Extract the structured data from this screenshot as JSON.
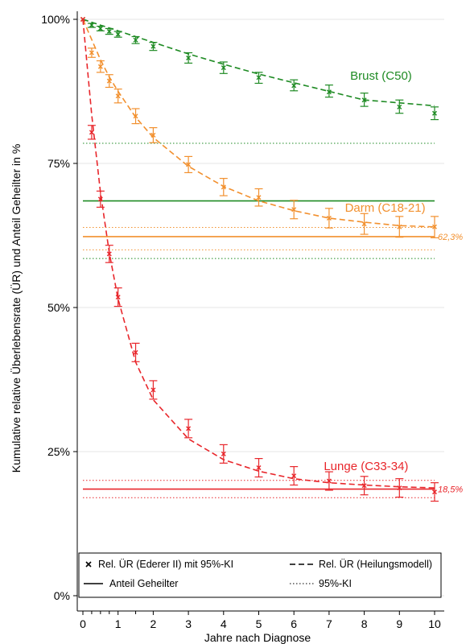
{
  "chart_data": {
    "type": "line",
    "xlabel": "Jahre nach Diagnose",
    "ylabel": "Kumulative relative Überlebensrate (ÜR) und Anteil Geheilter in %",
    "xlim": [
      0,
      10
    ],
    "ylim": [
      0,
      100
    ],
    "x_ticks": [
      "0",
      "1",
      "2",
      "3",
      "4",
      "5",
      "6",
      "7",
      "8",
      "9",
      "10"
    ],
    "y_ticks": [
      "0%",
      "25%",
      "50%",
      "75%",
      "100%"
    ],
    "grid": true,
    "colors": {
      "brust": "#1f8b24",
      "darm": "#f2902e",
      "lunge": "#e8262b"
    },
    "series": [
      {
        "name": "Brust (C50)",
        "color_key": "brust",
        "x": [
          0,
          0.25,
          0.5,
          0.75,
          1,
          1.5,
          2,
          3,
          4,
          5,
          6,
          7,
          8,
          9,
          10
        ],
        "observed": [
          100,
          99.0,
          98.4,
          97.9,
          97.4,
          96.4,
          95.3,
          93.3,
          91.6,
          89.9,
          88.5,
          87.4,
          86.0,
          84.8,
          83.7
        ],
        "ci_low": [
          100,
          98.6,
          98.0,
          97.4,
          96.9,
          95.8,
          94.6,
          92.4,
          90.6,
          88.9,
          87.6,
          86.5,
          84.9,
          83.7,
          82.6
        ],
        "ci_high": [
          100,
          99.3,
          98.8,
          98.4,
          97.9,
          97.0,
          96.0,
          94.2,
          92.6,
          90.8,
          89.5,
          88.6,
          87.2,
          86.0,
          84.8
        ],
        "model": [
          100,
          99.5,
          99.0,
          98.5,
          98.0,
          97.0,
          96.0,
          94.0,
          92.2,
          90.5,
          89.0,
          87.5,
          86.0,
          85.5,
          85.0
        ],
        "cure_fraction": 68.5,
        "cure_ci": [
          58.5,
          78.5
        ]
      },
      {
        "name": "Darm (C18-21)",
        "color_key": "darm",
        "x": [
          0,
          0.25,
          0.5,
          0.75,
          1,
          1.5,
          2,
          3,
          4,
          5,
          6,
          7,
          8,
          9,
          10
        ],
        "observed": [
          100,
          94.2,
          91.8,
          89.3,
          86.7,
          83.2,
          79.9,
          74.8,
          70.9,
          69.1,
          67.0,
          65.5,
          64.5,
          64.0,
          64.0
        ],
        "ci_low": [
          100,
          93.4,
          90.8,
          88.2,
          85.5,
          81.9,
          78.6,
          73.4,
          69.4,
          67.6,
          65.4,
          63.8,
          62.7,
          62.2,
          62.1
        ],
        "ci_high": [
          100,
          95.0,
          92.8,
          90.4,
          87.9,
          84.5,
          81.2,
          76.2,
          72.4,
          70.6,
          68.6,
          67.2,
          66.3,
          65.8,
          65.8
        ],
        "model": [
          100,
          96.5,
          93.0,
          90.0,
          87.5,
          83.0,
          79.5,
          74.5,
          71.0,
          68.5,
          66.8,
          65.5,
          64.8,
          64.2,
          64.0
        ],
        "cure_fraction": 62.3,
        "cure_label": "62,3%",
        "cure_ci": [
          60.0,
          63.9
        ]
      },
      {
        "name": "Lunge (C33-34)",
        "color_key": "lunge",
        "x": [
          0,
          0.25,
          0.5,
          0.75,
          1,
          1.5,
          2,
          3,
          4,
          5,
          6,
          7,
          8,
          9,
          10
        ],
        "observed": [
          100,
          80.4,
          68.8,
          59.3,
          51.8,
          42.2,
          35.7,
          29.0,
          24.6,
          22.2,
          20.8,
          19.9,
          19.1,
          18.7,
          18.0
        ],
        "ci_low": [
          100,
          79.2,
          67.4,
          57.8,
          50.2,
          40.6,
          34.1,
          27.4,
          23.0,
          20.6,
          19.2,
          18.3,
          17.5,
          17.1,
          16.4
        ],
        "ci_high": [
          100,
          81.6,
          70.2,
          60.8,
          53.4,
          43.8,
          37.3,
          30.6,
          26.2,
          23.8,
          22.4,
          21.5,
          20.7,
          20.3,
          19.6
        ],
        "model": [
          100,
          83.5,
          70.0,
          59.5,
          51.5,
          40.5,
          34.0,
          27.2,
          23.6,
          21.6,
          20.3,
          19.6,
          19.2,
          18.9,
          18.7
        ],
        "cure_fraction": 18.5,
        "cure_label": "18,5%",
        "cure_ci": [
          17.0,
          20.0
        ]
      }
    ],
    "legend": {
      "position": "bottom",
      "entries": [
        {
          "symbol": "cross",
          "label": "Rel. ÜR (Ederer II) mit 95%-KI"
        },
        {
          "symbol": "dash",
          "label": "Rel. ÜR (Heilungsmodell)"
        },
        {
          "symbol": "solid",
          "label": "Anteil Geheilter"
        },
        {
          "symbol": "dotted",
          "label": "95%-KI"
        }
      ]
    }
  }
}
